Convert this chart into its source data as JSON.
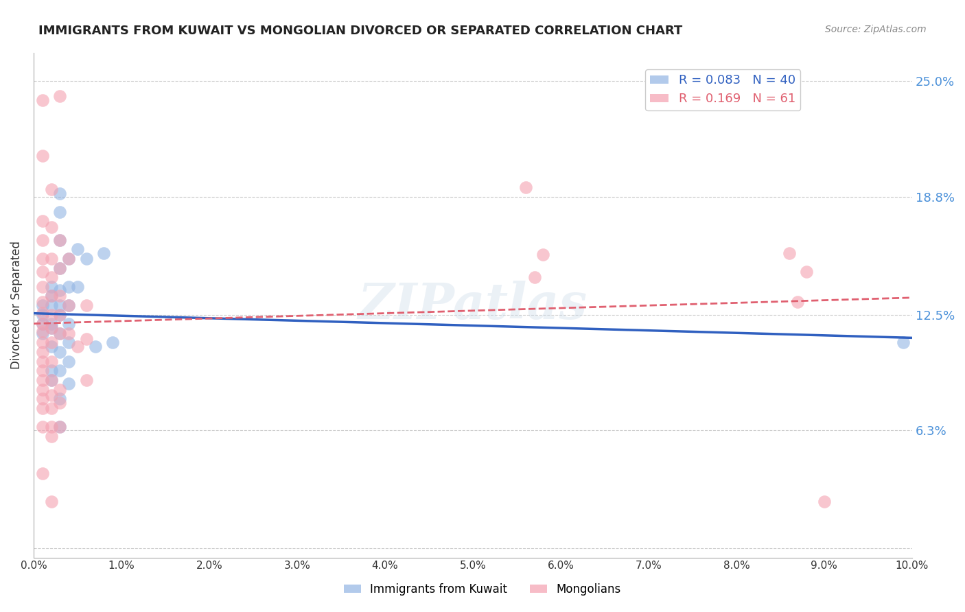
{
  "title": "IMMIGRANTS FROM KUWAIT VS MONGOLIAN DIVORCED OR SEPARATED CORRELATION CHART",
  "source": "Source: ZipAtlas.com",
  "ylabel": "Divorced or Separated",
  "ytick_vals": [
    0.0,
    0.063,
    0.125,
    0.188,
    0.25
  ],
  "ytick_labels": [
    "",
    "6.3%",
    "12.5%",
    "18.8%",
    "25.0%"
  ],
  "xlim": [
    0.0,
    0.1
  ],
  "ylim": [
    -0.005,
    0.265
  ],
  "legend1_label": "Immigrants from Kuwait",
  "legend2_label": "Mongolians",
  "R1": 0.083,
  "N1": 40,
  "R2": 0.169,
  "N2": 61,
  "color_blue": "#92b4e3",
  "color_pink": "#f4a0b0",
  "line_color_blue": "#3060c0",
  "line_color_pink": "#e06070",
  "watermark": "ZIPatlas",
  "blue_points": [
    [
      0.001,
      0.13
    ],
    [
      0.001,
      0.12
    ],
    [
      0.001,
      0.125
    ],
    [
      0.001,
      0.115
    ],
    [
      0.002,
      0.14
    ],
    [
      0.002,
      0.13
    ],
    [
      0.002,
      0.135
    ],
    [
      0.002,
      0.12
    ],
    [
      0.002,
      0.118
    ],
    [
      0.002,
      0.108
    ],
    [
      0.002,
      0.095
    ],
    [
      0.002,
      0.09
    ],
    [
      0.003,
      0.19
    ],
    [
      0.003,
      0.18
    ],
    [
      0.003,
      0.165
    ],
    [
      0.003,
      0.15
    ],
    [
      0.003,
      0.138
    ],
    [
      0.003,
      0.13
    ],
    [
      0.003,
      0.125
    ],
    [
      0.003,
      0.115
    ],
    [
      0.003,
      0.105
    ],
    [
      0.003,
      0.095
    ],
    [
      0.003,
      0.08
    ],
    [
      0.003,
      0.065
    ],
    [
      0.004,
      0.155
    ],
    [
      0.004,
      0.14
    ],
    [
      0.004,
      0.13
    ],
    [
      0.004,
      0.12
    ],
    [
      0.004,
      0.11
    ],
    [
      0.004,
      0.1
    ],
    [
      0.004,
      0.088
    ],
    [
      0.005,
      0.16
    ],
    [
      0.005,
      0.14
    ],
    [
      0.006,
      0.155
    ],
    [
      0.007,
      0.108
    ],
    [
      0.008,
      0.158
    ],
    [
      0.009,
      0.11
    ],
    [
      0.099,
      0.11
    ]
  ],
  "pink_points": [
    [
      0.001,
      0.24
    ],
    [
      0.001,
      0.21
    ],
    [
      0.001,
      0.175
    ],
    [
      0.001,
      0.165
    ],
    [
      0.001,
      0.155
    ],
    [
      0.001,
      0.148
    ],
    [
      0.001,
      0.14
    ],
    [
      0.001,
      0.132
    ],
    [
      0.001,
      0.126
    ],
    [
      0.001,
      0.12
    ],
    [
      0.001,
      0.116
    ],
    [
      0.001,
      0.11
    ],
    [
      0.001,
      0.105
    ],
    [
      0.001,
      0.1
    ],
    [
      0.001,
      0.095
    ],
    [
      0.001,
      0.09
    ],
    [
      0.001,
      0.085
    ],
    [
      0.001,
      0.08
    ],
    [
      0.001,
      0.075
    ],
    [
      0.001,
      0.065
    ],
    [
      0.001,
      0.04
    ],
    [
      0.002,
      0.192
    ],
    [
      0.002,
      0.172
    ],
    [
      0.002,
      0.155
    ],
    [
      0.002,
      0.145
    ],
    [
      0.002,
      0.135
    ],
    [
      0.002,
      0.125
    ],
    [
      0.002,
      0.118
    ],
    [
      0.002,
      0.11
    ],
    [
      0.002,
      0.1
    ],
    [
      0.002,
      0.09
    ],
    [
      0.002,
      0.082
    ],
    [
      0.002,
      0.075
    ],
    [
      0.002,
      0.065
    ],
    [
      0.002,
      0.06
    ],
    [
      0.002,
      0.025
    ],
    [
      0.003,
      0.242
    ],
    [
      0.003,
      0.165
    ],
    [
      0.003,
      0.15
    ],
    [
      0.003,
      0.135
    ],
    [
      0.003,
      0.125
    ],
    [
      0.003,
      0.115
    ],
    [
      0.003,
      0.085
    ],
    [
      0.003,
      0.078
    ],
    [
      0.003,
      0.065
    ],
    [
      0.004,
      0.155
    ],
    [
      0.004,
      0.13
    ],
    [
      0.004,
      0.115
    ],
    [
      0.005,
      0.108
    ],
    [
      0.006,
      0.13
    ],
    [
      0.006,
      0.112
    ],
    [
      0.006,
      0.09
    ],
    [
      0.056,
      0.193
    ],
    [
      0.057,
      0.145
    ],
    [
      0.058,
      0.157
    ],
    [
      0.086,
      0.158
    ],
    [
      0.087,
      0.132
    ],
    [
      0.088,
      0.148
    ],
    [
      0.09,
      0.025
    ]
  ]
}
